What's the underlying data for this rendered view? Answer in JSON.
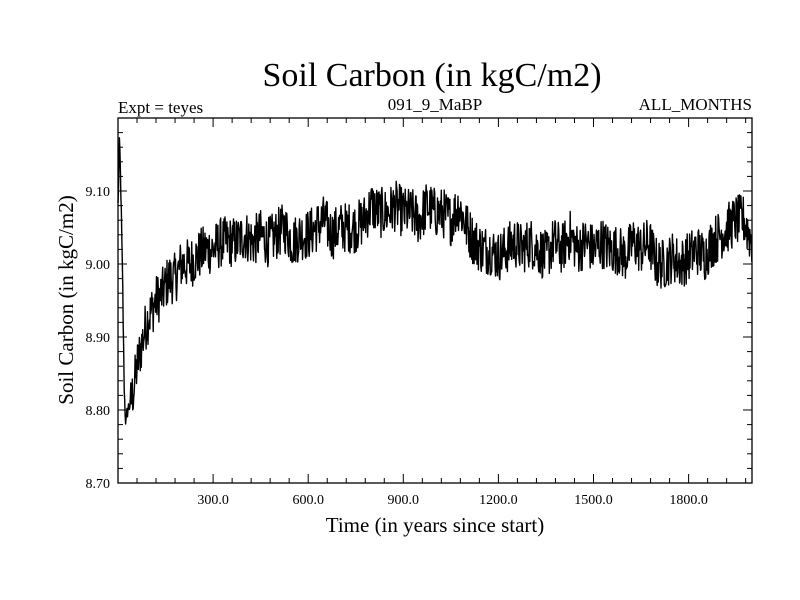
{
  "chart_data": {
    "type": "line",
    "title": "Soil Carbon (in kgC/m2)",
    "subtitle_left": "Expt = teyes",
    "subtitle_center": "091_9_MaBP",
    "subtitle_right": "ALL_MONTHS",
    "xlabel": "Time (in years since start)",
    "ylabel": "Soil Carbon (in kgC/m2)",
    "xlim": [
      0,
      2000
    ],
    "ylim": [
      8.7,
      9.2
    ],
    "xticks": [
      300,
      600,
      900,
      1200,
      1500,
      1800
    ],
    "xtick_labels": [
      "300.0",
      "600.0",
      "900.0",
      "1200.0",
      "1500.0",
      "1800.0"
    ],
    "yticks": [
      8.7,
      8.8,
      8.9,
      9.0,
      9.1
    ],
    "ytick_labels": [
      "8.70",
      "8.80",
      "8.90",
      "9.00",
      "9.10"
    ],
    "grid": false,
    "line_color": "#000000",
    "series": [
      {
        "x": [
          0,
          5,
          10,
          15,
          20,
          25,
          30,
          40,
          50,
          60,
          70,
          80,
          90,
          100,
          120,
          140,
          160,
          180,
          200,
          225,
          250,
          275,
          300,
          325,
          350,
          375,
          400,
          425,
          450,
          475,
          500,
          525,
          550,
          575,
          600,
          625,
          650,
          675,
          700,
          725,
          750,
          775,
          800,
          825,
          850,
          875,
          900,
          925,
          950,
          975,
          1000,
          1025,
          1050,
          1075,
          1100,
          1125,
          1150,
          1175,
          1200,
          1225,
          1250,
          1275,
          1300,
          1325,
          1350,
          1375,
          1400,
          1425,
          1450,
          1475,
          1500,
          1525,
          1550,
          1575,
          1600,
          1625,
          1650,
          1675,
          1700,
          1725,
          1750,
          1775,
          1800,
          1825,
          1850,
          1875,
          1900,
          1925,
          1950,
          1975,
          2000
        ],
        "y": [
          9.08,
          9.17,
          9.08,
          8.96,
          8.82,
          8.78,
          8.8,
          8.81,
          8.83,
          8.86,
          8.88,
          8.9,
          8.92,
          8.93,
          8.95,
          8.96,
          8.98,
          8.98,
          9.0,
          9.0,
          9.01,
          9.02,
          9.02,
          9.03,
          9.03,
          9.03,
          9.04,
          9.03,
          9.04,
          9.03,
          9.04,
          9.05,
          9.03,
          9.04,
          9.04,
          9.05,
          9.06,
          9.04,
          9.05,
          9.05,
          9.05,
          9.06,
          9.08,
          9.07,
          9.07,
          9.08,
          9.07,
          9.07,
          9.06,
          9.08,
          9.07,
          9.07,
          9.06,
          9.08,
          9.05,
          9.03,
          9.02,
          9.02,
          9.01,
          9.02,
          9.03,
          9.02,
          9.03,
          9.02,
          9.01,
          9.03,
          9.02,
          9.04,
          9.02,
          9.03,
          9.02,
          9.03,
          9.02,
          9.02,
          9.01,
          9.03,
          9.02,
          9.03,
          9.0,
          9.0,
          9.01,
          9.0,
          9.01,
          9.02,
          9.01,
          9.03,
          9.04,
          9.05,
          9.06,
          9.06,
          9.03
        ]
      }
    ]
  }
}
